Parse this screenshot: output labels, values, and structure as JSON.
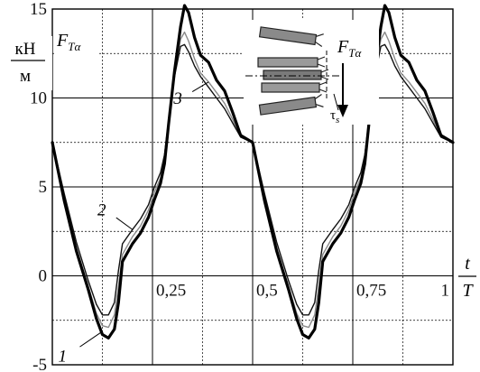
{
  "chart_data": {
    "type": "line",
    "xlabel": {
      "numerator": "t",
      "denominator": "T"
    },
    "ylabel": {
      "numerator": "кН",
      "denominator": "м"
    },
    "quantity_label": {
      "base": "F",
      "sub": "Tα"
    },
    "inset_label": {
      "base": "F",
      "sub": "Tα"
    },
    "inset_tau_label": {
      "base": "τ",
      "sub": "s"
    },
    "xlim": [
      0,
      1
    ],
    "ylim": [
      -5,
      15
    ],
    "x_ticks": [
      {
        "value": 0.25,
        "label": "0,25"
      },
      {
        "value": 0.5,
        "label": "0,5"
      },
      {
        "value": 0.75,
        "label": "0,75"
      },
      {
        "value": 1,
        "label": "1"
      }
    ],
    "y_ticks": [
      {
        "value": 15,
        "label": "15"
      },
      {
        "value": 10,
        "label": "10"
      },
      {
        "value": 5,
        "label": "5"
      },
      {
        "value": 0,
        "label": "0"
      },
      {
        "value": -5,
        "label": "-5"
      }
    ],
    "grid": true,
    "series": [
      {
        "id": "1",
        "label": "1",
        "points": [
          [
            0,
            7.5
          ],
          [
            0.03,
            4.2
          ],
          [
            0.06,
            1.4
          ],
          [
            0.09,
            -0.8
          ],
          [
            0.11,
            -2.4
          ],
          [
            0.125,
            -3.3
          ],
          [
            0.14,
            -3.5
          ],
          [
            0.155,
            -3.0
          ],
          [
            0.165,
            -1.5
          ],
          [
            0.175,
            0.8
          ],
          [
            0.2,
            1.8
          ],
          [
            0.22,
            2.4
          ],
          [
            0.24,
            3.3
          ],
          [
            0.255,
            4.3
          ],
          [
            0.27,
            5.2
          ],
          [
            0.28,
            6.3
          ],
          [
            0.29,
            8.5
          ],
          [
            0.305,
            11.5
          ],
          [
            0.32,
            14.0
          ],
          [
            0.33,
            15.2
          ],
          [
            0.34,
            14.8
          ],
          [
            0.355,
            13.4
          ],
          [
            0.37,
            12.4
          ],
          [
            0.39,
            12.0
          ],
          [
            0.41,
            11.0
          ],
          [
            0.43,
            10.4
          ],
          [
            0.45,
            9.2
          ],
          [
            0.47,
            7.9
          ],
          [
            0.5,
            7.5
          ],
          [
            0.53,
            4.2
          ],
          [
            0.56,
            1.4
          ],
          [
            0.59,
            -0.8
          ],
          [
            0.61,
            -2.4
          ],
          [
            0.625,
            -3.3
          ],
          [
            0.64,
            -3.5
          ],
          [
            0.655,
            -3.0
          ],
          [
            0.665,
            -1.5
          ],
          [
            0.675,
            0.8
          ],
          [
            0.7,
            1.8
          ],
          [
            0.72,
            2.4
          ],
          [
            0.74,
            3.3
          ],
          [
            0.755,
            4.3
          ],
          [
            0.77,
            5.2
          ],
          [
            0.78,
            6.3
          ],
          [
            0.79,
            8.5
          ],
          [
            0.805,
            11.5
          ],
          [
            0.82,
            14.0
          ],
          [
            0.83,
            15.2
          ],
          [
            0.84,
            14.8
          ],
          [
            0.855,
            13.4
          ],
          [
            0.87,
            12.4
          ],
          [
            0.89,
            12.0
          ],
          [
            0.91,
            11.0
          ],
          [
            0.93,
            10.4
          ],
          [
            0.95,
            9.2
          ],
          [
            0.97,
            7.9
          ],
          [
            1,
            7.5
          ]
        ]
      },
      {
        "id": "2",
        "label": "2",
        "points": [
          [
            0,
            7.5
          ],
          [
            0.03,
            4.6
          ],
          [
            0.06,
            1.9
          ],
          [
            0.09,
            -0.3
          ],
          [
            0.11,
            -1.6
          ],
          [
            0.125,
            -2.2
          ],
          [
            0.14,
            -2.2
          ],
          [
            0.155,
            -1.5
          ],
          [
            0.165,
            0.3
          ],
          [
            0.175,
            1.8
          ],
          [
            0.2,
            2.6
          ],
          [
            0.22,
            3.2
          ],
          [
            0.24,
            4.0
          ],
          [
            0.255,
            5.0
          ],
          [
            0.27,
            5.8
          ],
          [
            0.28,
            6.8
          ],
          [
            0.29,
            8.7
          ],
          [
            0.305,
            11.2
          ],
          [
            0.32,
            12.9
          ],
          [
            0.33,
            13.0
          ],
          [
            0.34,
            12.6
          ],
          [
            0.355,
            11.8
          ],
          [
            0.37,
            11.2
          ],
          [
            0.39,
            10.6
          ],
          [
            0.41,
            10.0
          ],
          [
            0.43,
            9.4
          ],
          [
            0.45,
            8.6
          ],
          [
            0.47,
            7.8
          ],
          [
            0.5,
            7.5
          ],
          [
            0.53,
            4.6
          ],
          [
            0.56,
            1.9
          ],
          [
            0.59,
            -0.3
          ],
          [
            0.61,
            -1.6
          ],
          [
            0.625,
            -2.2
          ],
          [
            0.64,
            -2.2
          ],
          [
            0.655,
            -1.5
          ],
          [
            0.665,
            0.3
          ],
          [
            0.675,
            1.8
          ],
          [
            0.7,
            2.6
          ],
          [
            0.72,
            3.2
          ],
          [
            0.74,
            4.0
          ],
          [
            0.755,
            5.0
          ],
          [
            0.77,
            5.8
          ],
          [
            0.78,
            6.8
          ],
          [
            0.79,
            8.7
          ],
          [
            0.805,
            11.2
          ],
          [
            0.82,
            12.9
          ],
          [
            0.83,
            13.0
          ],
          [
            0.84,
            12.6
          ],
          [
            0.855,
            11.8
          ],
          [
            0.87,
            11.2
          ],
          [
            0.89,
            10.6
          ],
          [
            0.91,
            10.0
          ],
          [
            0.93,
            9.4
          ],
          [
            0.95,
            8.6
          ],
          [
            0.97,
            7.8
          ],
          [
            1,
            7.5
          ]
        ]
      },
      {
        "id": "3",
        "label": "3",
        "points": [
          [
            0,
            7.5
          ],
          [
            0.03,
            4.4
          ],
          [
            0.06,
            1.6
          ],
          [
            0.09,
            -0.6
          ],
          [
            0.11,
            -2.1
          ],
          [
            0.125,
            -2.8
          ],
          [
            0.14,
            -2.9
          ],
          [
            0.155,
            -2.2
          ],
          [
            0.165,
            -0.6
          ],
          [
            0.175,
            1.2
          ],
          [
            0.2,
            2.2
          ],
          [
            0.22,
            2.8
          ],
          [
            0.24,
            3.7
          ],
          [
            0.255,
            4.7
          ],
          [
            0.27,
            5.5
          ],
          [
            0.28,
            6.5
          ],
          [
            0.29,
            8.6
          ],
          [
            0.305,
            11.3
          ],
          [
            0.32,
            13.3
          ],
          [
            0.33,
            13.7
          ],
          [
            0.34,
            13.2
          ],
          [
            0.355,
            12.2
          ],
          [
            0.37,
            11.4
          ],
          [
            0.39,
            10.9
          ],
          [
            0.41,
            10.3
          ],
          [
            0.43,
            9.7
          ],
          [
            0.45,
            8.8
          ],
          [
            0.47,
            7.8
          ],
          [
            0.5,
            7.5
          ],
          [
            0.53,
            4.4
          ],
          [
            0.56,
            1.6
          ],
          [
            0.59,
            -0.6
          ],
          [
            0.61,
            -2.1
          ],
          [
            0.625,
            -2.8
          ],
          [
            0.64,
            -2.9
          ],
          [
            0.655,
            -2.2
          ],
          [
            0.665,
            -0.6
          ],
          [
            0.675,
            1.2
          ],
          [
            0.7,
            2.2
          ],
          [
            0.72,
            2.8
          ],
          [
            0.74,
            3.7
          ],
          [
            0.755,
            4.7
          ],
          [
            0.77,
            5.5
          ],
          [
            0.78,
            6.5
          ],
          [
            0.79,
            8.6
          ],
          [
            0.805,
            11.3
          ],
          [
            0.82,
            13.3
          ],
          [
            0.83,
            13.7
          ],
          [
            0.84,
            13.2
          ],
          [
            0.855,
            12.2
          ],
          [
            0.87,
            11.4
          ],
          [
            0.89,
            10.9
          ],
          [
            0.91,
            10.3
          ],
          [
            0.93,
            9.7
          ],
          [
            0.95,
            8.8
          ],
          [
            0.97,
            7.8
          ],
          [
            1,
            7.5
          ]
        ]
      }
    ],
    "series_styles": {
      "1": {
        "color": "#000000",
        "weight": "heavy"
      },
      "2": {
        "color": "#111111",
        "weight": "light"
      },
      "3": {
        "color": "#8a8a8a",
        "weight": "light"
      }
    },
    "callouts": [
      {
        "series": "1",
        "label": "1",
        "at": [
          0.12,
          -3.2
        ]
      },
      {
        "series": "2",
        "label": "2",
        "at": [
          0.2,
          2.6
        ]
      },
      {
        "series": "3",
        "label": "3",
        "at": [
          0.39,
          10.9
        ]
      }
    ]
  }
}
